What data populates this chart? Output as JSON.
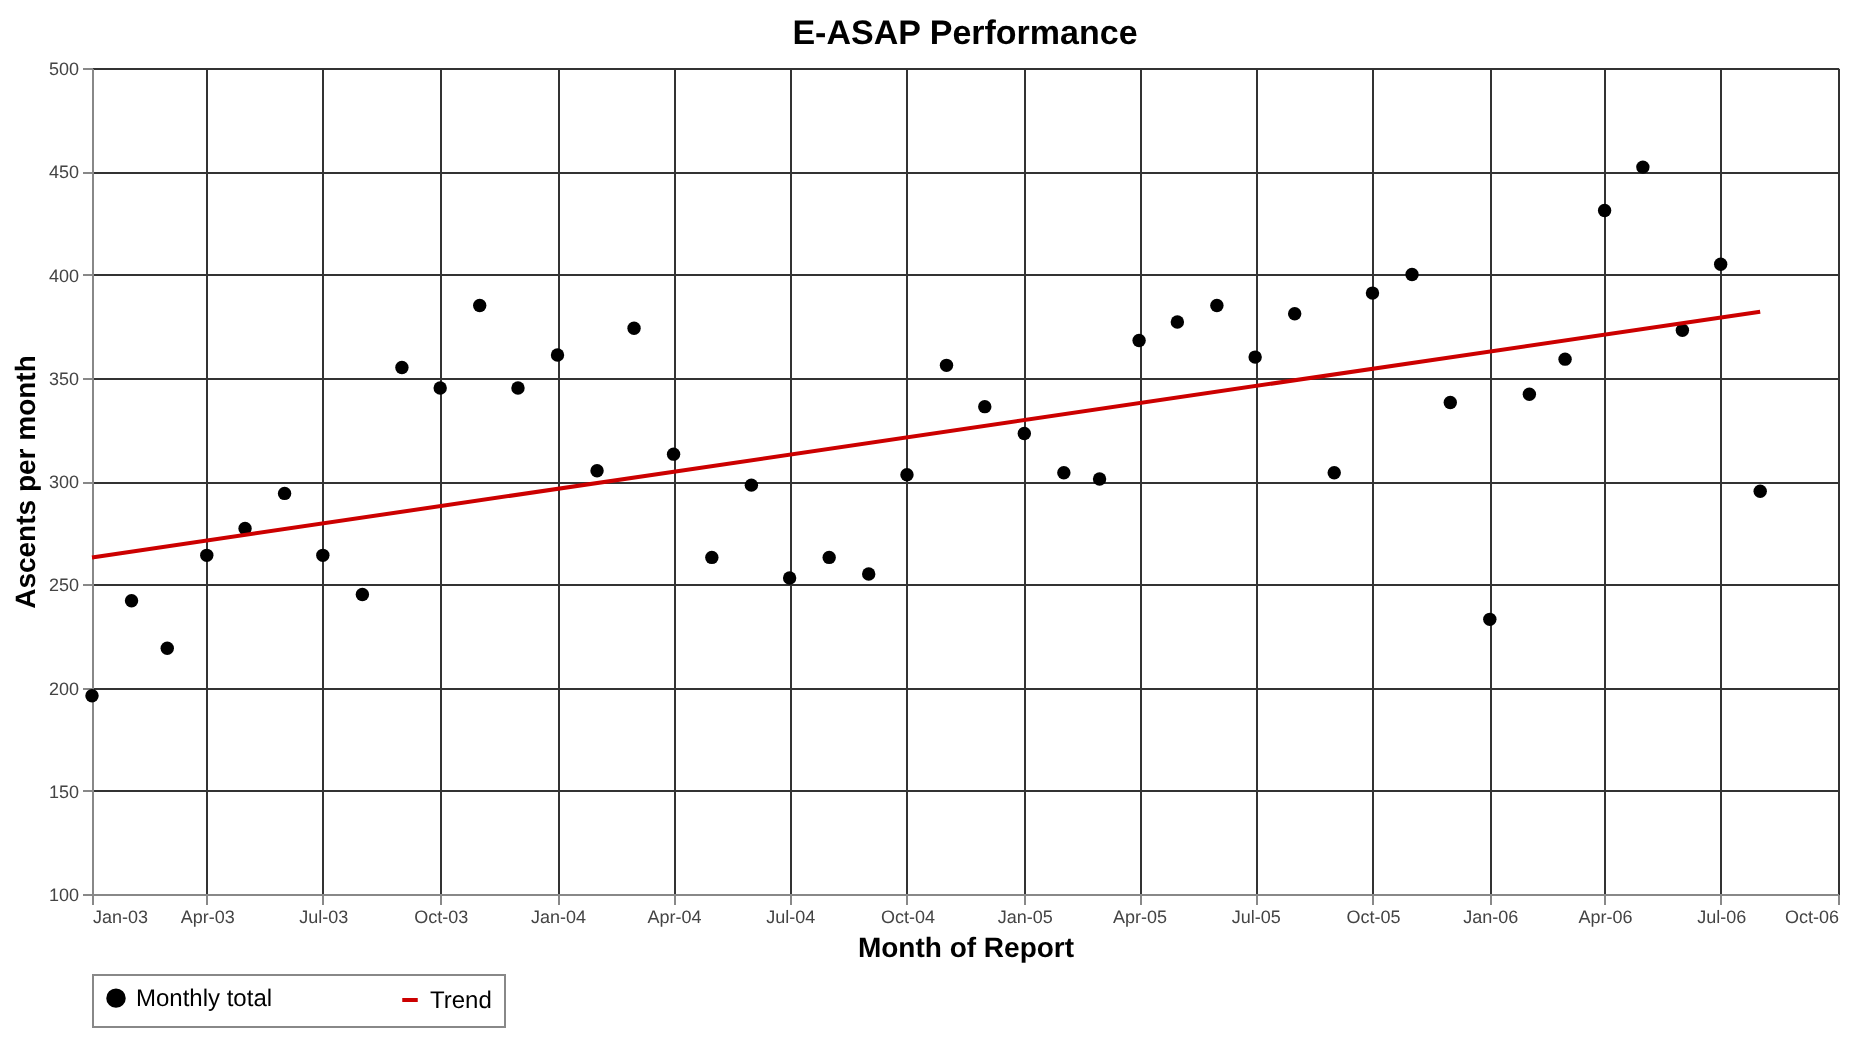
{
  "chart_data": {
    "type": "scatter",
    "title": "E-ASAP Performance",
    "xlabel": "Month of Report",
    "ylabel": "Ascents per month",
    "x": [
      "2003-01",
      "2003-02",
      "2003-03",
      "2003-04",
      "2003-05",
      "2003-06",
      "2003-07",
      "2003-08",
      "2003-09",
      "2003-10",
      "2003-11",
      "2003-12",
      "2004-01",
      "2004-02",
      "2004-03",
      "2004-04",
      "2004-05",
      "2004-06",
      "2004-07",
      "2004-08",
      "2004-09",
      "2004-10",
      "2004-11",
      "2004-12",
      "2005-01",
      "2005-02",
      "2005-03",
      "2005-04",
      "2005-05",
      "2005-06",
      "2005-07",
      "2005-08",
      "2005-09",
      "2005-10",
      "2005-11",
      "2005-12",
      "2006-01",
      "2006-02",
      "2006-03",
      "2006-04",
      "2006-05",
      "2006-06",
      "2006-07",
      "2006-08"
    ],
    "series": [
      {
        "name": "Monthly total",
        "color": "#000000",
        "marker": "circle",
        "values": [
          196,
          242,
          219,
          264,
          277,
          294,
          264,
          245,
          355,
          345,
          385,
          345,
          361,
          305,
          374,
          313,
          263,
          298,
          253,
          263,
          255,
          303,
          356,
          336,
          323,
          304,
          301,
          368,
          377,
          385,
          360,
          381,
          304,
          391,
          400,
          338,
          233,
          342,
          359,
          431,
          452,
          373,
          405,
          295
        ]
      },
      {
        "name": "Trend",
        "type": "line",
        "color": "#cc0000",
        "line_style": "solid",
        "x": [
          "2003-01",
          "2006-08"
        ],
        "values": [
          263,
          382
        ]
      }
    ],
    "xlim": [
      "2003-01",
      "2006-10"
    ],
    "xticks": [
      {
        "value": "2003-01",
        "label": "Jan-03"
      },
      {
        "value": "2003-04",
        "label": "Apr-03"
      },
      {
        "value": "2003-07",
        "label": "Jul-03"
      },
      {
        "value": "2003-10",
        "label": "Oct-03"
      },
      {
        "value": "2004-01",
        "label": "Jan-04"
      },
      {
        "value": "2004-04",
        "label": "Apr-04"
      },
      {
        "value": "2004-07",
        "label": "Jul-04"
      },
      {
        "value": "2004-10",
        "label": "Oct-04"
      },
      {
        "value": "2005-01",
        "label": "Jan-05"
      },
      {
        "value": "2005-04",
        "label": "Apr-05"
      },
      {
        "value": "2005-07",
        "label": "Jul-05"
      },
      {
        "value": "2005-10",
        "label": "Oct-05"
      },
      {
        "value": "2006-01",
        "label": "Jan-06"
      },
      {
        "value": "2006-04",
        "label": "Apr-06"
      },
      {
        "value": "2006-07",
        "label": "Jul-06"
      },
      {
        "value": "2006-10",
        "label": "Oct-06"
      }
    ],
    "ylim": [
      100,
      500
    ],
    "yticks": [
      100,
      150,
      200,
      250,
      300,
      350,
      400,
      450,
      500
    ],
    "grid": true,
    "legend": "bottom"
  }
}
